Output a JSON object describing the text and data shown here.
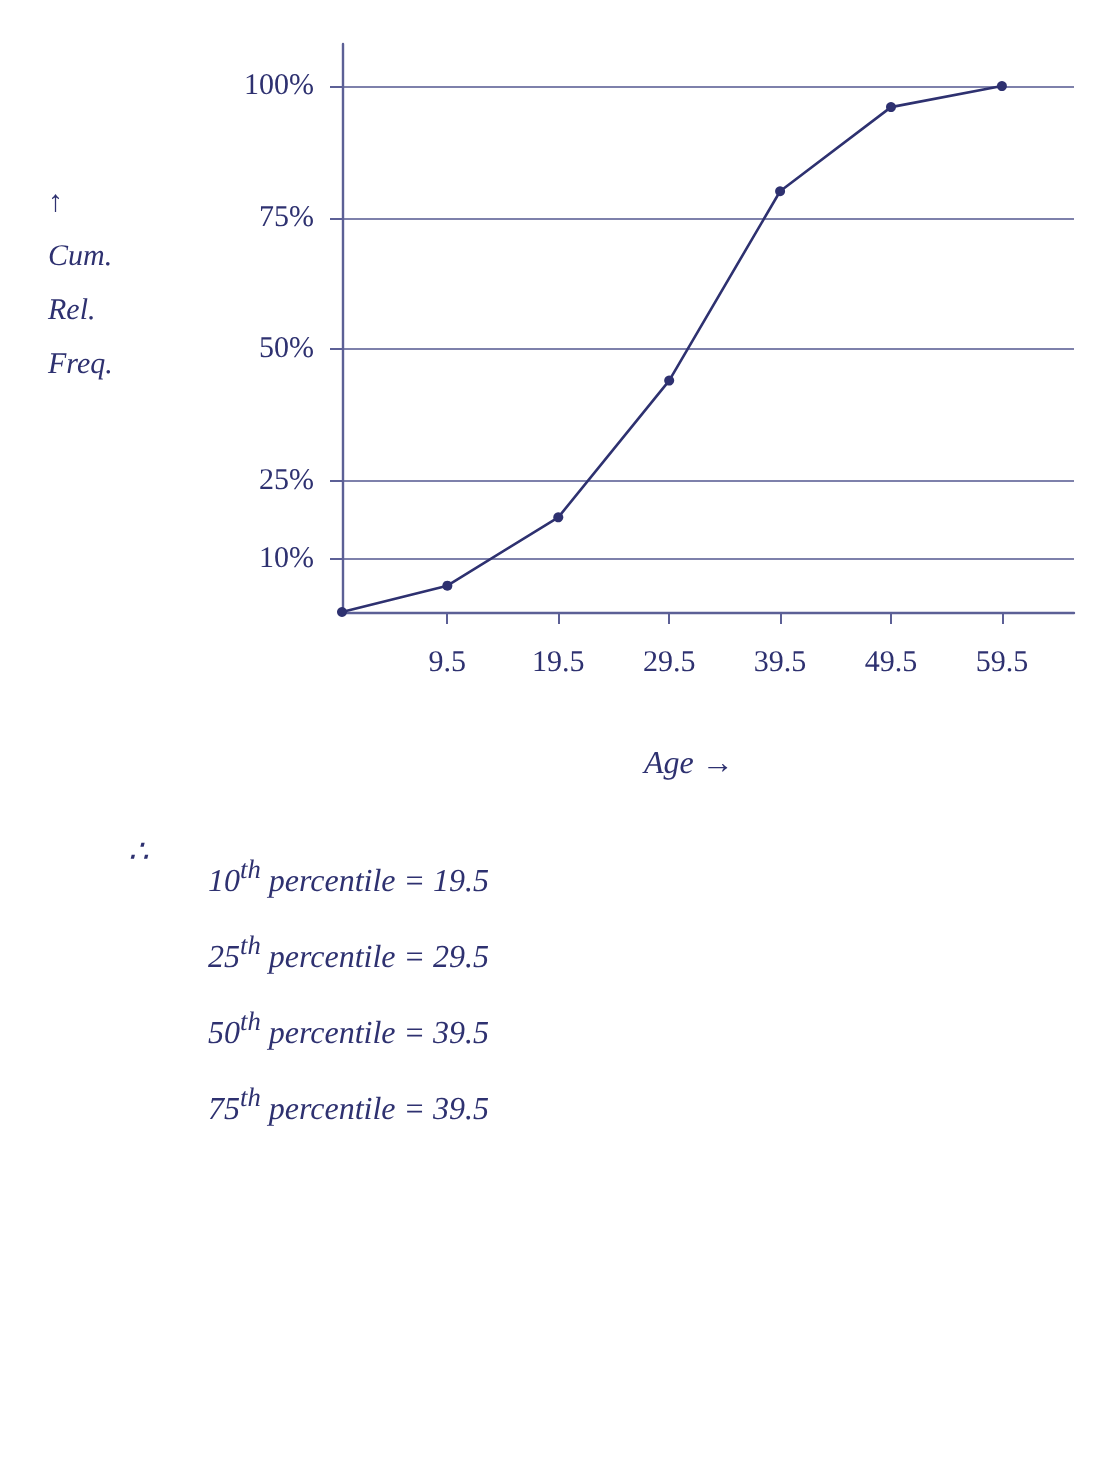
{
  "chart_data": {
    "type": "line",
    "xlabel": "Age →",
    "ylabel": "↑ Cum. Rel. Freq.",
    "x": [
      0,
      9.5,
      19.5,
      29.5,
      39.5,
      49.5,
      59.5
    ],
    "series": [
      {
        "color": "#2e3170",
        "values": [
          0,
          5,
          18,
          44,
          80,
          96,
          100
        ]
      }
    ],
    "xlim": [
      0,
      66
    ],
    "ylim": [
      0,
      108
    ],
    "xticks": [
      9.5,
      19.5,
      29.5,
      39.5,
      49.5,
      59.5
    ],
    "yticks": [
      {
        "value": 10,
        "label": "10%"
      },
      {
        "value": 25,
        "label": "25%"
      },
      {
        "value": 50,
        "label": "50%"
      },
      {
        "value": 75,
        "label": "75%"
      },
      {
        "value": 100,
        "label": "100%"
      }
    ],
    "grid": "y",
    "marker": "circle",
    "line_style": "solid",
    "annotations": [
      "∴",
      "10$^{th}$ percentile = 19.5",
      "25$^{th}$ percentile = 29.5",
      "50$^{th}$ percentile = 39.5",
      "75$^{th}$ percentile = 39.5"
    ]
  }
}
